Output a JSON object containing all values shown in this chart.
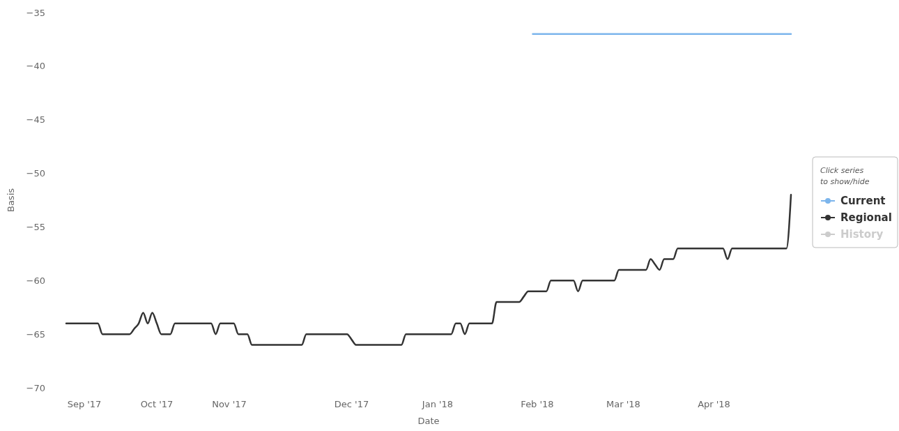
{
  "chart_data": {
    "type": "line",
    "xlabel": "Date",
    "ylabel": "Basis",
    "legend_title": "Click series\nto show/hide",
    "legend": "right",
    "grid": false,
    "ylim": [
      -70,
      -35
    ],
    "yticks": [
      -70,
      -65,
      -60,
      -55,
      -50,
      -45,
      -40,
      -35
    ],
    "categories": [
      null,
      null,
      null,
      null,
      "Sep '17",
      null,
      null,
      null,
      null,
      null,
      null,
      null,
      null,
      null,
      null,
      null,
      null,
      null,
      null,
      null,
      "Oct '17",
      null,
      null,
      null,
      null,
      null,
      null,
      null,
      null,
      null,
      null,
      null,
      null,
      null,
      null,
      null,
      "Nov '17",
      null,
      null,
      null,
      null,
      null,
      null,
      null,
      null,
      null,
      null,
      null,
      null,
      null,
      null,
      null,
      null,
      null,
      null,
      null,
      null,
      null,
      null,
      null,
      null,
      null,
      null,
      "Dec '17",
      null,
      null,
      null,
      null,
      null,
      null,
      null,
      null,
      null,
      null,
      null,
      null,
      null,
      null,
      null,
      null,
      null,
      null,
      "Jan '18",
      null,
      null,
      null,
      null,
      null,
      null,
      null,
      null,
      null,
      null,
      null,
      null,
      null,
      null,
      null,
      null,
      null,
      null,
      null,
      null,
      null,
      "Feb '18",
      null,
      null,
      null,
      null,
      null,
      null,
      null,
      null,
      null,
      null,
      null,
      null,
      null,
      null,
      null,
      null,
      null,
      null,
      "Mar '18",
      null,
      null,
      null,
      null,
      null,
      null,
      null,
      null,
      null,
      null,
      null,
      null,
      null,
      null,
      null,
      null,
      null,
      null,
      null,
      "Apr '18",
      null,
      null,
      null,
      null,
      null,
      null,
      null,
      null,
      null,
      null,
      null,
      null,
      null,
      null,
      null,
      null,
      null
    ],
    "series": [
      {
        "name": "Current",
        "color": "#7cb5ec",
        "values": [
          null,
          null,
          null,
          null,
          null,
          null,
          null,
          null,
          null,
          null,
          null,
          null,
          null,
          null,
          null,
          null,
          null,
          null,
          null,
          null,
          null,
          null,
          null,
          null,
          null,
          null,
          null,
          null,
          null,
          null,
          null,
          null,
          null,
          null,
          null,
          null,
          null,
          null,
          null,
          null,
          null,
          null,
          null,
          null,
          null,
          null,
          null,
          null,
          null,
          null,
          null,
          null,
          null,
          null,
          null,
          null,
          null,
          null,
          null,
          null,
          null,
          null,
          null,
          null,
          null,
          null,
          null,
          null,
          null,
          null,
          null,
          null,
          null,
          null,
          null,
          null,
          null,
          null,
          null,
          null,
          null,
          null,
          null,
          null,
          null,
          null,
          null,
          null,
          null,
          null,
          null,
          null,
          null,
          null,
          null,
          null,
          null,
          null,
          null,
          null,
          null,
          null,
          null,
          -37,
          -37,
          -37,
          -37,
          -37,
          -37,
          -37,
          -37,
          -37,
          -37,
          -37,
          -37,
          -37,
          -37,
          -37,
          -37,
          -37,
          -37,
          -37,
          -37,
          -37,
          -37,
          -37,
          -37,
          -37,
          -37,
          -37,
          -37,
          -37,
          -37,
          -37,
          -37,
          -37,
          -37,
          -37,
          -37,
          -37,
          -37,
          -37,
          -37,
          -37,
          -37,
          -37,
          -37,
          -37,
          -37,
          -37,
          -37,
          -37,
          -37,
          -37,
          -37,
          -37,
          -37,
          -37,
          -37,
          -37,
          -37
        ]
      },
      {
        "name": "Regional",
        "color": "#333333",
        "values": [
          -64,
          -64,
          -64,
          -64,
          -64,
          -64,
          -64,
          -64,
          -65,
          -65,
          -65,
          -65,
          -65,
          -65,
          -65,
          -64.5,
          -64,
          -63,
          -64,
          -63,
          -64,
          -65,
          -65,
          -65,
          -64,
          -64,
          -64,
          -64,
          -64,
          -64,
          -64,
          -64,
          -64,
          -65,
          -64,
          -64,
          -64,
          -64,
          -65,
          -65,
          -65,
          -66,
          -66,
          -66,
          -66,
          -66,
          -66,
          -66,
          -66,
          -66,
          -66,
          -66,
          -66,
          -65,
          -65,
          -65,
          -65,
          -65,
          -65,
          -65,
          -65,
          -65,
          -65,
          -65.5,
          -66,
          -66,
          -66,
          -66,
          -66,
          -66,
          -66,
          -66,
          -66,
          -66,
          -66,
          -65,
          -65,
          -65,
          -65,
          -65,
          -65,
          -65,
          -65,
          -65,
          -65,
          -65,
          -64,
          -64,
          -65,
          -64,
          -64,
          -64,
          -64,
          -64,
          -64,
          -62,
          -62,
          -62,
          -62,
          -62,
          -62,
          -61.5,
          -61,
          -61,
          -61,
          -61,
          -61,
          -60,
          -60,
          -60,
          -60,
          -60,
          -60,
          -61,
          -60,
          -60,
          -60,
          -60,
          -60,
          -60,
          -60,
          -60,
          -59,
          -59,
          -59,
          -59,
          -59,
          -59,
          -59,
          -58,
          -58.5,
          -59,
          -58,
          -58,
          -58,
          -57,
          -57,
          -57,
          -57,
          -57,
          -57,
          -57,
          -57,
          -57,
          -57,
          -57,
          -58,
          -57,
          -57,
          -57,
          -57,
          -57,
          -57,
          -57,
          -57,
          -57,
          -57,
          -57,
          -57,
          -57,
          -52
        ]
      },
      {
        "name": "History",
        "color": "#cccccc",
        "values": [
          null,
          null,
          null,
          null,
          null,
          null,
          null,
          null,
          null,
          null,
          null,
          null,
          null,
          null,
          null,
          null,
          null,
          null,
          null,
          null,
          null,
          null,
          null,
          null,
          null,
          null,
          null,
          null,
          null,
          null,
          null,
          null,
          null,
          null,
          null,
          null,
          null,
          null,
          null,
          null,
          null,
          null,
          null,
          null,
          null,
          null,
          null,
          null,
          null,
          null,
          null,
          null,
          null,
          null,
          null,
          null,
          null,
          null,
          null,
          null,
          null,
          null,
          null,
          null,
          null,
          null,
          null,
          null,
          null,
          null,
          null,
          null,
          null,
          null,
          null,
          null,
          null,
          null,
          null,
          null,
          null,
          null,
          null,
          null,
          null,
          null,
          null,
          null,
          null,
          null,
          null,
          null,
          null,
          null,
          null,
          null,
          null,
          null,
          null,
          null,
          null,
          null,
          null,
          null,
          null,
          null,
          null,
          null,
          null,
          null,
          null,
          null,
          null,
          null,
          null,
          null,
          null,
          null,
          null,
          null,
          null,
          null,
          null,
          null,
          null,
          null,
          null,
          null,
          null,
          null,
          null,
          null,
          null,
          null,
          null,
          null,
          null,
          null,
          null,
          null,
          null,
          null,
          null,
          null,
          null,
          null,
          null,
          null,
          null,
          null,
          null,
          null,
          null,
          null,
          null,
          null,
          null,
          null,
          null,
          null,
          null
        ]
      }
    ]
  }
}
